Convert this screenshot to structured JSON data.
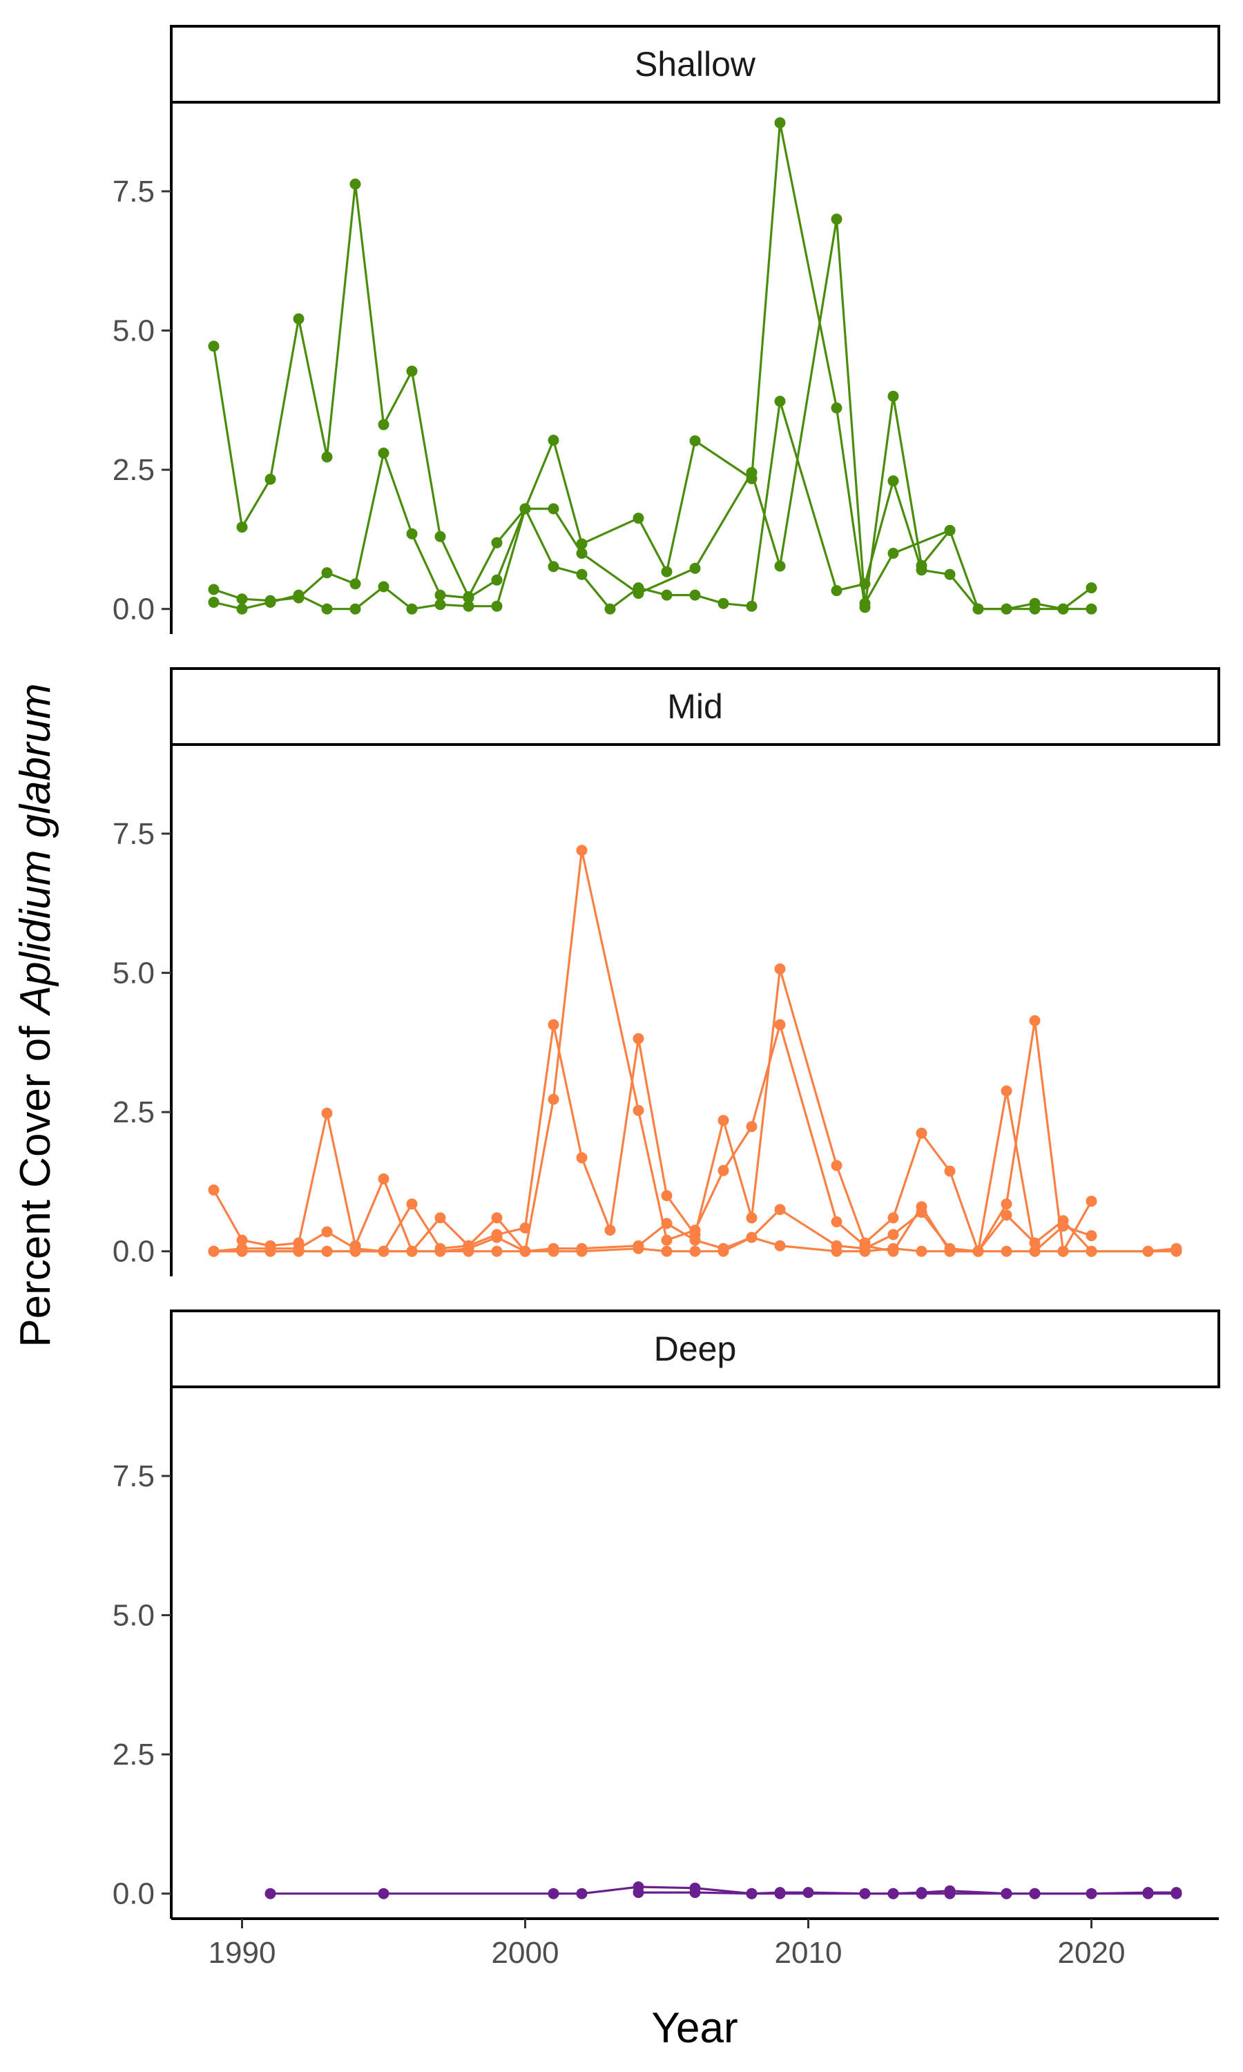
{
  "chart_data": {
    "type": "line",
    "ylabel": {
      "prefix": "Percent Cover of ",
      "species": "Aplidium glabrum"
    },
    "xlabel": "Year",
    "xlim": [
      1987.5,
      2024.5
    ],
    "ylim": [
      -0.45,
      9.1
    ],
    "x_ticks": [
      1990,
      2000,
      2010,
      2020
    ],
    "x_tick_labels": [
      "1990",
      "2000",
      "2010",
      "2020"
    ],
    "y_ticks": [
      0,
      2.5,
      5,
      7.5
    ],
    "y_tick_labels": [
      "0.0",
      "2.5",
      "5.0",
      "7.5"
    ],
    "grid": false,
    "legend": "none",
    "facets": [
      {
        "label": "Shallow",
        "color": "#4a8c0b",
        "series": [
          {
            "x": [
              1989,
              1990,
              1991,
              1992,
              1993,
              1994,
              1995,
              1996,
              1997,
              1998,
              1999,
              2000,
              2001,
              2002,
              2004,
              2005,
              2006,
              2008,
              2009,
              2011,
              2012,
              2013,
              2014,
              2015
            ],
            "y": [
              4.72,
              1.47,
              2.33,
              5.21,
              2.73,
              7.63,
              3.31,
              4.27,
              1.3,
              0.22,
              1.19,
              1.8,
              3.03,
              1.17,
              1.63,
              0.67,
              3.02,
              2.34,
              8.73,
              3.61,
              0.03,
              3.82,
              0.78,
              1.41
            ]
          },
          {
            "x": [
              1989,
              1990,
              1991,
              1992,
              1993,
              1994,
              1995,
              1996,
              1997,
              1998,
              1999,
              2000,
              2001,
              2002,
              2003,
              2004,
              2005,
              2006,
              2007,
              2008,
              2009,
              2011,
              2012,
              2013,
              2014,
              2015,
              2016,
              2017,
              2018,
              2019,
              2020
            ],
            "y": [
              0.35,
              0.18,
              0.15,
              0.2,
              0.65,
              0.45,
              2.8,
              1.35,
              0.25,
              0.2,
              0.52,
              1.8,
              0.76,
              0.62,
              0.0,
              0.38,
              0.25,
              0.25,
              0.1,
              0.05,
              3.73,
              0.33,
              0.45,
              2.3,
              0.7,
              0.62,
              0.0,
              0.0,
              0.1,
              0.0,
              0.38
            ]
          },
          {
            "x": [
              1989,
              1990,
              1991,
              1992,
              1993,
              1994,
              1995,
              1996,
              1997,
              1998,
              1999,
              2000,
              2001,
              2002,
              2004,
              2006,
              2008,
              2009,
              2011,
              2012,
              2013,
              2015,
              2016,
              2017,
              2018,
              2019,
              2020
            ],
            "y": [
              0.12,
              0.0,
              0.12,
              0.25,
              0.0,
              0.0,
              0.4,
              0.0,
              0.08,
              0.05,
              0.05,
              1.8,
              1.8,
              1.0,
              0.28,
              0.73,
              2.45,
              0.77,
              7.0,
              0.1,
              1.0,
              1.41,
              0.0,
              0.0,
              0.0,
              0.0,
              0.0
            ]
          }
        ]
      },
      {
        "label": "Mid",
        "color": "#fb8044",
        "series": [
          {
            "x": [
              1989,
              1990,
              1991,
              1992,
              1993,
              1994,
              1995,
              1996,
              1997,
              1998,
              1999,
              2000,
              2001,
              2002,
              2003,
              2004,
              2005,
              2006,
              2007,
              2008,
              2009,
              2011,
              2012,
              2013,
              2014,
              2015,
              2016,
              2017,
              2018,
              2019,
              2020
            ],
            "y": [
              1.1,
              0.2,
              0.1,
              0.15,
              2.48,
              0.1,
              1.3,
              0.0,
              0.6,
              0.1,
              0.3,
              0.42,
              4.07,
              1.68,
              0.38,
              3.82,
              1.0,
              0.3,
              2.35,
              0.6,
              5.07,
              1.54,
              0.15,
              0.6,
              2.12,
              1.44,
              0.0,
              2.88,
              0.0,
              0.45,
              0.28
            ]
          },
          {
            "x": [
              1989,
              1990,
              1991,
              1992,
              1993,
              1994,
              1995,
              1996,
              1997,
              1998,
              1999,
              2000,
              2001,
              2002,
              2004,
              2005,
              2006,
              2007,
              2008,
              2009,
              2011,
              2012,
              2013,
              2014,
              2015,
              2016,
              2017,
              2018,
              2019,
              2020
            ],
            "y": [
              0.0,
              0.05,
              0.05,
              0.05,
              0.35,
              0.05,
              0.0,
              0.85,
              0.05,
              0.1,
              0.6,
              0.0,
              2.73,
              7.2,
              2.53,
              0.2,
              0.38,
              1.45,
              2.24,
              4.07,
              0.53,
              0.1,
              0.0,
              0.8,
              0.0,
              0.0,
              0.85,
              4.14,
              0.0,
              0.9
            ]
          },
          {
            "x": [
              1989,
              1990,
              1991,
              1992,
              1993,
              1994,
              1995,
              1996,
              1997,
              1998,
              1999,
              2000,
              2001,
              2002,
              2004,
              2005,
              2006,
              2007,
              2008,
              2009,
              2011,
              2012,
              2013,
              2014,
              2015,
              2016,
              2017,
              2018,
              2019,
              2020,
              2022,
              2023
            ],
            "y": [
              0.0,
              0.0,
              0.0,
              0.0,
              0.0,
              0.0,
              0.0,
              0.0,
              0.0,
              0.05,
              0.25,
              0.0,
              0.05,
              0.05,
              0.1,
              0.5,
              0.2,
              0.05,
              0.25,
              0.75,
              0.1,
              0.05,
              0.3,
              0.7,
              0.05,
              0.0,
              0.65,
              0.15,
              0.55,
              0.0,
              0.0,
              0.05
            ]
          },
          {
            "x": [
              1989,
              1990,
              1991,
              1992,
              1993,
              1994,
              1995,
              1996,
              1997,
              1998,
              1999,
              2000,
              2001,
              2002,
              2004,
              2005,
              2006,
              2007,
              2008,
              2009,
              2011,
              2012,
              2013,
              2014,
              2015,
              2016,
              2017,
              2018,
              2019,
              2020,
              2022,
              2023
            ],
            "y": [
              0.0,
              0.0,
              0.0,
              0.0,
              0.0,
              0.0,
              0.0,
              0.0,
              0.0,
              0.0,
              0.0,
              0.0,
              0.0,
              0.0,
              0.05,
              0.0,
              0.0,
              0.0,
              0.25,
              0.1,
              0.0,
              0.0,
              0.05,
              0.0,
              0.0,
              0.0,
              0.0,
              0.0,
              0.0,
              0.0,
              0.0,
              0.0
            ]
          }
        ]
      },
      {
        "label": "Deep",
        "color": "#6a1f8e",
        "series": [
          {
            "x": [
              1991,
              1995,
              2001,
              2002,
              2004,
              2006,
              2008,
              2009,
              2010,
              2012,
              2013,
              2014,
              2015,
              2017,
              2018,
              2020,
              2022,
              2023
            ],
            "y": [
              0.0,
              0.0,
              0.0,
              0.0,
              0.12,
              0.1,
              0.0,
              0.02,
              0.02,
              0.0,
              0.0,
              0.02,
              0.05,
              0.0,
              0.0,
              0.0,
              0.02,
              0.02
            ]
          },
          {
            "x": [
              2004,
              2006,
              2008,
              2009,
              2013,
              2014,
              2015,
              2017,
              2018,
              2022,
              2023
            ],
            "y": [
              0.02,
              0.02,
              0.0,
              0.0,
              0.0,
              0.0,
              0.0,
              0.0,
              0.0,
              0.0,
              0.0
            ]
          }
        ]
      }
    ]
  }
}
